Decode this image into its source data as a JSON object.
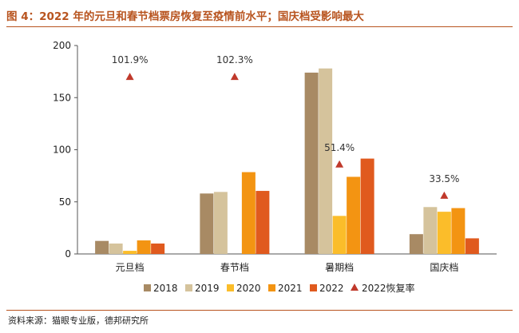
{
  "figure": {
    "title": "图 4：2022 年的元旦和春节档票房恢复至疫情前水平；国庆档受影响最大",
    "source": "资料来源：猫眼专业版，德邦研究所"
  },
  "chart_data": {
    "type": "bar",
    "categories": [
      "元旦档",
      "春节档",
      "暑期档",
      "国庆档"
    ],
    "series": [
      {
        "name": "2018",
        "color": "#a88a64",
        "values": [
          12.5,
          58,
          174,
          19
        ]
      },
      {
        "name": "2019",
        "color": "#d5c39c",
        "values": [
          10,
          59.5,
          178,
          45
        ]
      },
      {
        "name": "2020",
        "color": "#fbbd2a",
        "values": [
          3,
          0,
          36.5,
          40.5
        ]
      },
      {
        "name": "2021",
        "color": "#f39412",
        "values": [
          13,
          78.5,
          74,
          44
        ]
      },
      {
        "name": "2022",
        "color": "#e05a1e",
        "values": [
          10,
          60.5,
          91.5,
          15
        ]
      }
    ],
    "recovery": {
      "name": "2022恢复率",
      "color": "#c0392b",
      "marker_values": [
        170,
        170,
        86,
        56
      ],
      "labels": [
        "101.9%",
        "102.3%",
        "51.4%",
        "33.5%"
      ]
    },
    "ylim": [
      0,
      200
    ],
    "yticks": [
      0,
      50,
      100,
      150,
      200
    ],
    "grid": false,
    "legend_position": "bottom"
  }
}
